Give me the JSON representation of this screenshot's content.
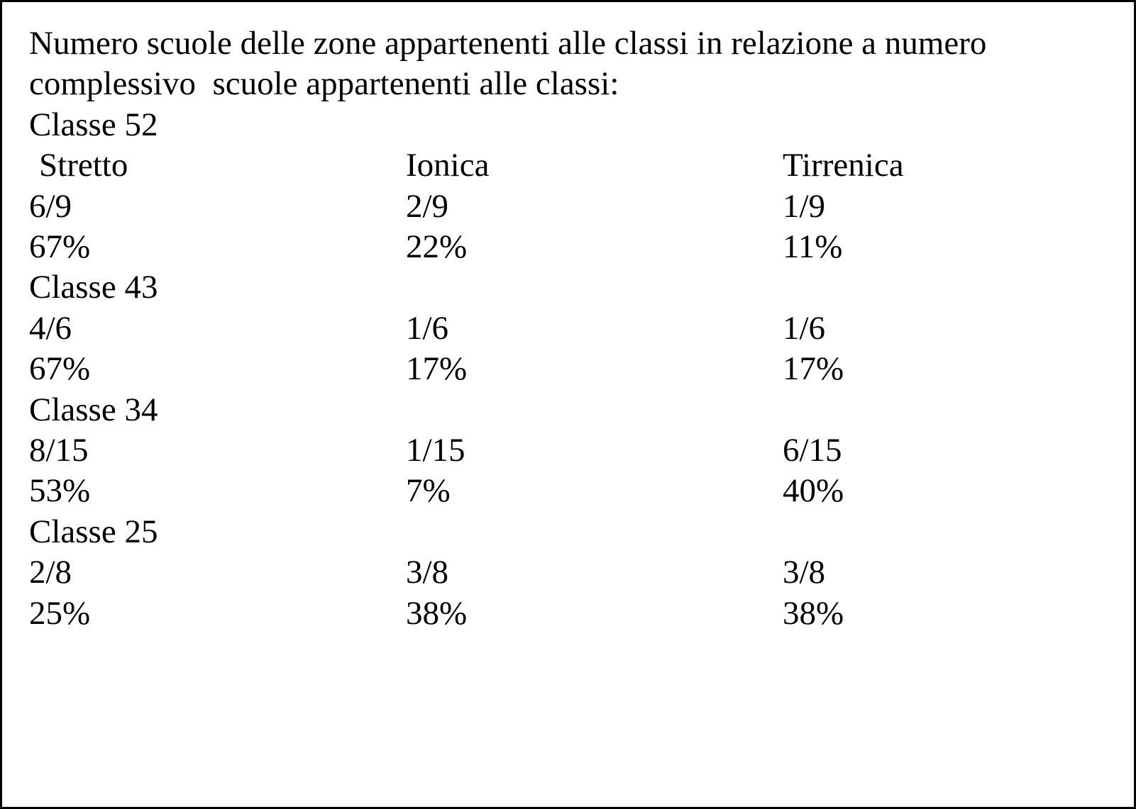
{
  "header": {
    "title": "Numero scuole delle zone appartenenti alle classi in relazione a numero complessivo  scuole appartenenti alle classi:"
  },
  "columns": [
    "Stretto",
    "Ionica",
    "Tirrenica"
  ],
  "classes": [
    {
      "name": "Classe 52",
      "fractions": [
        "6/9",
        "2/9",
        "1/9"
      ],
      "percents": [
        "67%",
        "22%",
        "11%"
      ]
    },
    {
      "name": "Classe 43",
      "fractions": [
        "4/6",
        "1/6",
        "1/6"
      ],
      "percents": [
        "67%",
        "17%",
        "17%"
      ]
    },
    {
      "name": "Classe 34",
      "fractions": [
        "8/15",
        "1/15",
        "6/15"
      ],
      "percents": [
        "53%",
        "7%",
        "40%"
      ]
    },
    {
      "name": "Classe 25",
      "fractions": [
        "2/8",
        "3/8",
        "3/8"
      ],
      "percents": [
        "25%",
        "38%",
        "38%"
      ]
    }
  ]
}
